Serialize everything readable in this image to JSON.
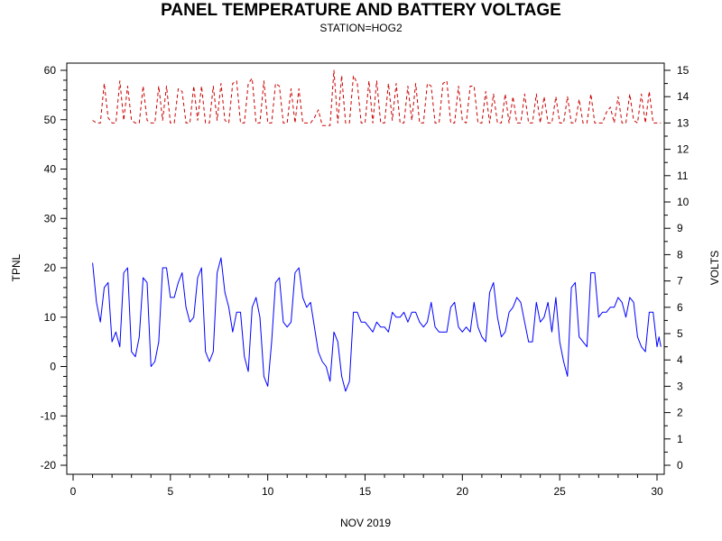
{
  "chart_data": {
    "type": "line",
    "title": "PANEL TEMPERATURE AND BATTERY VOLTAGE",
    "subtitle": "STATION=HOG2",
    "xlabel": "NOV 2019",
    "ylabel_left": "TPNL",
    "ylabel_right": "VOLTS",
    "xlim": [
      0,
      30
    ],
    "ylim_left": [
      -20,
      60
    ],
    "ylim_right": [
      0,
      15
    ],
    "x_ticks": [
      0,
      5,
      10,
      15,
      20,
      25,
      30
    ],
    "y_left_ticks": [
      -20,
      -10,
      0,
      10,
      20,
      30,
      40,
      50,
      60
    ],
    "y_right_ticks": [
      0,
      1,
      2,
      3,
      4,
      5,
      6,
      7,
      8,
      9,
      10,
      11,
      12,
      13,
      14,
      15
    ],
    "grid": false,
    "series": [
      {
        "axis": "left",
        "color": "#0000ff",
        "dash": "solid",
        "points": [
          [
            1.0,
            21
          ],
          [
            1.2,
            13
          ],
          [
            1.4,
            9
          ],
          [
            1.6,
            16
          ],
          [
            1.8,
            17
          ],
          [
            2.0,
            5
          ],
          [
            2.2,
            7
          ],
          [
            2.4,
            4
          ],
          [
            2.6,
            19
          ],
          [
            2.8,
            20
          ],
          [
            3.0,
            3
          ],
          [
            3.2,
            2
          ],
          [
            3.4,
            6
          ],
          [
            3.6,
            18
          ],
          [
            3.8,
            17
          ],
          [
            4.0,
            0
          ],
          [
            4.2,
            1
          ],
          [
            4.4,
            5
          ],
          [
            4.6,
            20
          ],
          [
            4.8,
            20
          ],
          [
            5.0,
            14
          ],
          [
            5.2,
            14
          ],
          [
            5.4,
            17
          ],
          [
            5.6,
            19
          ],
          [
            5.8,
            12
          ],
          [
            6.0,
            9
          ],
          [
            6.2,
            10
          ],
          [
            6.4,
            18
          ],
          [
            6.6,
            20
          ],
          [
            6.8,
            3
          ],
          [
            7.0,
            1
          ],
          [
            7.2,
            3
          ],
          [
            7.4,
            19
          ],
          [
            7.6,
            22
          ],
          [
            7.8,
            15
          ],
          [
            8.0,
            12
          ],
          [
            8.2,
            7
          ],
          [
            8.4,
            11
          ],
          [
            8.6,
            11
          ],
          [
            8.8,
            2
          ],
          [
            9.0,
            -1
          ],
          [
            9.2,
            12
          ],
          [
            9.4,
            14
          ],
          [
            9.6,
            10
          ],
          [
            9.8,
            -2
          ],
          [
            10.0,
            -4
          ],
          [
            10.2,
            5
          ],
          [
            10.4,
            17
          ],
          [
            10.6,
            18
          ],
          [
            10.8,
            9
          ],
          [
            11.0,
            8
          ],
          [
            11.2,
            9
          ],
          [
            11.4,
            19
          ],
          [
            11.6,
            20
          ],
          [
            11.8,
            14
          ],
          [
            12.0,
            12
          ],
          [
            12.2,
            13
          ],
          [
            12.4,
            8
          ],
          [
            12.6,
            3
          ],
          [
            12.8,
            1
          ],
          [
            13.0,
            0
          ],
          [
            13.2,
            -3
          ],
          [
            13.4,
            7
          ],
          [
            13.6,
            5
          ],
          [
            13.8,
            -2
          ],
          [
            14.0,
            -5
          ],
          [
            14.2,
            -3
          ],
          [
            14.4,
            11
          ],
          [
            14.6,
            11
          ],
          [
            14.8,
            9
          ],
          [
            15.0,
            9
          ],
          [
            15.2,
            8
          ],
          [
            15.4,
            7
          ],
          [
            15.6,
            9
          ],
          [
            15.8,
            8
          ],
          [
            16.0,
            8
          ],
          [
            16.2,
            7
          ],
          [
            16.4,
            11
          ],
          [
            16.6,
            10
          ],
          [
            16.8,
            10
          ],
          [
            17.0,
            11
          ],
          [
            17.2,
            9
          ],
          [
            17.4,
            11
          ],
          [
            17.6,
            11
          ],
          [
            17.8,
            9
          ],
          [
            18.0,
            8
          ],
          [
            18.2,
            9
          ],
          [
            18.4,
            13
          ],
          [
            18.6,
            8
          ],
          [
            18.8,
            7
          ],
          [
            19.0,
            7
          ],
          [
            19.2,
            7
          ],
          [
            19.4,
            12
          ],
          [
            19.6,
            13
          ],
          [
            19.8,
            8
          ],
          [
            20.0,
            7
          ],
          [
            20.2,
            8
          ],
          [
            20.4,
            7
          ],
          [
            20.6,
            13
          ],
          [
            20.8,
            8
          ],
          [
            21.0,
            6
          ],
          [
            21.2,
            5
          ],
          [
            21.4,
            15
          ],
          [
            21.6,
            17
          ],
          [
            21.8,
            10
          ],
          [
            22.0,
            6
          ],
          [
            22.2,
            7
          ],
          [
            22.4,
            11
          ],
          [
            22.6,
            12
          ],
          [
            22.8,
            14
          ],
          [
            23.0,
            13
          ],
          [
            23.2,
            9
          ],
          [
            23.4,
            5
          ],
          [
            23.6,
            5
          ],
          [
            23.8,
            13
          ],
          [
            24.0,
            9
          ],
          [
            24.2,
            10
          ],
          [
            24.4,
            13
          ],
          [
            24.6,
            7
          ],
          [
            24.8,
            14
          ],
          [
            25.0,
            5
          ],
          [
            25.2,
            1
          ],
          [
            25.4,
            -2
          ],
          [
            25.6,
            16
          ],
          [
            25.8,
            17
          ],
          [
            26.0,
            6
          ],
          [
            26.2,
            5
          ],
          [
            26.4,
            4
          ],
          [
            26.6,
            19
          ],
          [
            26.8,
            19
          ],
          [
            27.0,
            10
          ],
          [
            27.2,
            11
          ],
          [
            27.4,
            11
          ],
          [
            27.6,
            12
          ],
          [
            27.8,
            12
          ],
          [
            28.0,
            14
          ],
          [
            28.2,
            13
          ],
          [
            28.4,
            10
          ],
          [
            28.6,
            14
          ],
          [
            28.8,
            13
          ],
          [
            29.0,
            6
          ],
          [
            29.2,
            4
          ],
          [
            29.4,
            3
          ],
          [
            29.6,
            11
          ],
          [
            29.8,
            11
          ],
          [
            30.0,
            4
          ],
          [
            30.1,
            6
          ],
          [
            30.2,
            4
          ]
        ]
      },
      {
        "axis": "right",
        "color": "#cc0000",
        "dash": "dashed",
        "points": [
          [
            1.0,
            13.1
          ],
          [
            1.2,
            13.0
          ],
          [
            1.4,
            13.0
          ],
          [
            1.6,
            14.5
          ],
          [
            1.8,
            13.2
          ],
          [
            2.0,
            13.0
          ],
          [
            2.2,
            13.0
          ],
          [
            2.4,
            14.6
          ],
          [
            2.6,
            13.1
          ],
          [
            2.8,
            14.4
          ],
          [
            3.0,
            13.1
          ],
          [
            3.2,
            13.0
          ],
          [
            3.4,
            13.0
          ],
          [
            3.6,
            14.4
          ],
          [
            3.8,
            13.1
          ],
          [
            4.0,
            13.0
          ],
          [
            4.2,
            13.0
          ],
          [
            4.4,
            14.4
          ],
          [
            4.6,
            13.1
          ],
          [
            4.8,
            14.4
          ],
          [
            5.0,
            13.0
          ],
          [
            5.2,
            13.0
          ],
          [
            5.4,
            14.3
          ],
          [
            5.6,
            14.2
          ],
          [
            5.8,
            13.0
          ],
          [
            6.0,
            13.0
          ],
          [
            6.2,
            14.4
          ],
          [
            6.4,
            13.1
          ],
          [
            6.6,
            14.4
          ],
          [
            6.8,
            13.0
          ],
          [
            7.0,
            13.0
          ],
          [
            7.2,
            14.4
          ],
          [
            7.4,
            13.1
          ],
          [
            7.6,
            14.5
          ],
          [
            7.8,
            13.1
          ],
          [
            8.0,
            13.0
          ],
          [
            8.2,
            14.5
          ],
          [
            8.4,
            14.6
          ],
          [
            8.6,
            13.0
          ],
          [
            8.8,
            13.0
          ],
          [
            9.0,
            14.5
          ],
          [
            9.2,
            14.7
          ],
          [
            9.4,
            13.0
          ],
          [
            9.6,
            13.0
          ],
          [
            9.8,
            14.6
          ],
          [
            10.0,
            13.0
          ],
          [
            10.2,
            13.0
          ],
          [
            10.4,
            14.5
          ],
          [
            10.6,
            14.4
          ],
          [
            10.8,
            13.0
          ],
          [
            11.0,
            13.0
          ],
          [
            11.2,
            14.3
          ],
          [
            11.4,
            13.0
          ],
          [
            11.6,
            14.3
          ],
          [
            11.8,
            13.0
          ],
          [
            12.0,
            13.0
          ],
          [
            12.2,
            13.0
          ],
          [
            12.4,
            13.2
          ],
          [
            12.6,
            13.5
          ],
          [
            12.8,
            12.9
          ],
          [
            13.0,
            12.9
          ],
          [
            13.2,
            12.9
          ],
          [
            13.4,
            15.0
          ],
          [
            13.6,
            13.0
          ],
          [
            13.8,
            14.8
          ],
          [
            14.0,
            13.0
          ],
          [
            14.2,
            13.0
          ],
          [
            14.4,
            14.8
          ],
          [
            14.6,
            14.5
          ],
          [
            14.8,
            13.0
          ],
          [
            15.0,
            13.0
          ],
          [
            15.2,
            14.6
          ],
          [
            15.4,
            13.0
          ],
          [
            15.6,
            14.6
          ],
          [
            15.8,
            13.0
          ],
          [
            16.0,
            13.0
          ],
          [
            16.2,
            14.5
          ],
          [
            16.4,
            13.1
          ],
          [
            16.6,
            14.5
          ],
          [
            16.8,
            13.0
          ],
          [
            17.0,
            13.0
          ],
          [
            17.2,
            14.4
          ],
          [
            17.4,
            13.1
          ],
          [
            17.6,
            14.5
          ],
          [
            17.8,
            13.0
          ],
          [
            18.0,
            13.0
          ],
          [
            18.2,
            14.5
          ],
          [
            18.4,
            14.4
          ],
          [
            18.6,
            13.0
          ],
          [
            18.8,
            13.0
          ],
          [
            19.0,
            14.5
          ],
          [
            19.2,
            14.6
          ],
          [
            19.4,
            13.0
          ],
          [
            19.6,
            13.0
          ],
          [
            19.8,
            14.4
          ],
          [
            20.0,
            13.1
          ],
          [
            20.2,
            13.0
          ],
          [
            20.4,
            14.4
          ],
          [
            20.6,
            14.4
          ],
          [
            20.8,
            13.0
          ],
          [
            21.0,
            13.0
          ],
          [
            21.2,
            14.2
          ],
          [
            21.4,
            13.0
          ],
          [
            21.6,
            14.1
          ],
          [
            21.8,
            13.0
          ],
          [
            22.0,
            13.0
          ],
          [
            22.2,
            14.1
          ],
          [
            22.4,
            13.0
          ],
          [
            22.6,
            14.0
          ],
          [
            22.8,
            13.0
          ],
          [
            23.0,
            13.0
          ],
          [
            23.2,
            14.1
          ],
          [
            23.4,
            13.0
          ],
          [
            23.6,
            13.0
          ],
          [
            23.8,
            14.1
          ],
          [
            24.0,
            13.0
          ],
          [
            24.2,
            14.0
          ],
          [
            24.4,
            13.0
          ],
          [
            24.6,
            13.0
          ],
          [
            24.8,
            14.0
          ],
          [
            25.0,
            13.0
          ],
          [
            25.2,
            13.0
          ],
          [
            25.4,
            14.0
          ],
          [
            25.6,
            13.0
          ],
          [
            25.8,
            13.0
          ],
          [
            26.0,
            13.9
          ],
          [
            26.2,
            13.0
          ],
          [
            26.4,
            13.0
          ],
          [
            26.6,
            14.1
          ],
          [
            26.8,
            13.0
          ],
          [
            27.0,
            13.0
          ],
          [
            27.2,
            13.0
          ],
          [
            27.4,
            13.4
          ],
          [
            27.6,
            13.6
          ],
          [
            27.8,
            13.0
          ],
          [
            28.0,
            14.0
          ],
          [
            28.2,
            13.0
          ],
          [
            28.4,
            13.0
          ],
          [
            28.6,
            14.1
          ],
          [
            28.8,
            13.1
          ],
          [
            29.0,
            13.0
          ],
          [
            29.2,
            14.1
          ],
          [
            29.4,
            13.0
          ],
          [
            29.6,
            14.2
          ],
          [
            29.8,
            13.0
          ],
          [
            30.0,
            13.0
          ],
          [
            30.2,
            13.0
          ]
        ]
      }
    ]
  }
}
